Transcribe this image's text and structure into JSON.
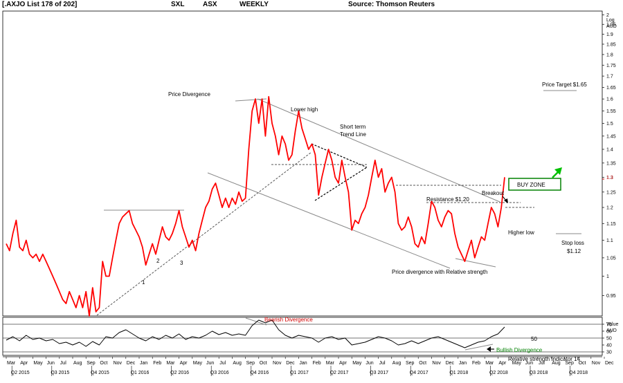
{
  "header": {
    "list": "[.AXJO List 178 of 202]",
    "code": "SXL",
    "exchange": "ASX",
    "period": "WEEKLY",
    "source": "Source: Thomson Reuters"
  },
  "chart_data": {
    "type": "line",
    "price_axis": {
      "unit_label": "Log",
      "currency_label": "AUD",
      "scale": "log",
      "ylim": [
        0.9,
        2.02
      ],
      "ticks": [
        0.95,
        1,
        1.05,
        1.1,
        1.15,
        1.2,
        1.25,
        1.3,
        1.35,
        1.4,
        1.45,
        1.5,
        1.55,
        1.6,
        1.65,
        1.7,
        1.75,
        1.8,
        1.85,
        1.9,
        1.95,
        2
      ],
      "tick_labels": [
        "0.95",
        "1",
        "1.05",
        "1.1",
        "1.15",
        "1.2",
        "1.25",
        "1.3",
        "1.35",
        "1.4",
        "1.45",
        "1.5",
        "1.55",
        "1.6",
        "1.65",
        "1.7",
        "1.75",
        "1.8",
        "1.85",
        "1.9",
        "1.95",
        "2"
      ],
      "last_value": "1.3",
      "last_value_tick": 1.3
    },
    "rsi_axis": {
      "value_label": "Value",
      "currency_label": "AUD",
      "ylim": [
        25,
        80
      ],
      "ticks": [
        30,
        40,
        50,
        60,
        70
      ],
      "tick_labels": [
        "30",
        "40",
        "50",
        "60",
        "70"
      ]
    },
    "x_axis": {
      "start_month_index": 3,
      "months": [
        "Mar",
        "Apr",
        "May",
        "Jun",
        "Jul",
        "Aug",
        "Sep",
        "Oct",
        "Nov",
        "Dec",
        "Jan",
        "Feb",
        "Mar",
        "Apr",
        "May",
        "Jun",
        "Jul",
        "Aug",
        "Sep",
        "Oct",
        "Nov",
        "Dec",
        "Jan",
        "Feb",
        "Mar",
        "Apr",
        "May",
        "Jun",
        "Jul",
        "Aug",
        "Sep",
        "Oct",
        "Nov",
        "Dec",
        "Jan",
        "Feb",
        "Mar",
        "Apr",
        "May",
        "Jun",
        "Jul",
        "Aug",
        "Sep",
        "Oct",
        "Nov",
        "Dec"
      ],
      "quarters": [
        {
          "label": "Q2 2015",
          "month": 4
        },
        {
          "label": "Q3 2015",
          "month": 7
        },
        {
          "label": "Q4 2015",
          "month": 10
        },
        {
          "label": "Q1 2016",
          "month": 13
        },
        {
          "label": "Q2 2016",
          "month": 16
        },
        {
          "label": "Q3 2016",
          "month": 19
        },
        {
          "label": "Q4 2016",
          "month": 22
        },
        {
          "label": "Q1 2017",
          "month": 25
        },
        {
          "label": "Q2 2017",
          "month": 28
        },
        {
          "label": "Q3 2017",
          "month": 31
        },
        {
          "label": "Q4 2017",
          "month": 34
        },
        {
          "label": "Q1 2018",
          "month": 37
        },
        {
          "label": "Q2 2018",
          "month": 40
        },
        {
          "label": "Q3 2018",
          "month": 43
        },
        {
          "label": "Q4 2018",
          "month": 46
        }
      ]
    },
    "price_series": {
      "color": "#ff0000",
      "points": [
        [
          3.0,
          1.09
        ],
        [
          3.25,
          1.07
        ],
        [
          3.5,
          1.12
        ],
        [
          3.75,
          1.16
        ],
        [
          4.0,
          1.08
        ],
        [
          4.25,
          1.07
        ],
        [
          4.5,
          1.1
        ],
        [
          4.75,
          1.06
        ],
        [
          5.0,
          1.05
        ],
        [
          5.25,
          1.06
        ],
        [
          5.5,
          1.04
        ],
        [
          5.75,
          1.06
        ],
        [
          6.0,
          1.04
        ],
        [
          6.25,
          1.02
        ],
        [
          6.5,
          1.0
        ],
        [
          6.75,
          0.98
        ],
        [
          7.0,
          0.96
        ],
        [
          7.25,
          0.94
        ],
        [
          7.5,
          0.93
        ],
        [
          7.75,
          0.96
        ],
        [
          8.0,
          0.94
        ],
        [
          8.25,
          0.92
        ],
        [
          8.5,
          0.95
        ],
        [
          8.75,
          0.92
        ],
        [
          9.0,
          0.96
        ],
        [
          9.25,
          0.9
        ],
        [
          9.5,
          0.97
        ],
        [
          9.75,
          0.91
        ],
        [
          10.0,
          0.92
        ],
        [
          10.25,
          1.04
        ],
        [
          10.5,
          1.0
        ],
        [
          10.75,
          1.0
        ],
        [
          11.0,
          1.05
        ],
        [
          11.25,
          1.1
        ],
        [
          11.5,
          1.15
        ],
        [
          11.75,
          1.17
        ],
        [
          12.0,
          1.18
        ],
        [
          12.25,
          1.19
        ],
        [
          12.5,
          1.15
        ],
        [
          12.75,
          1.13
        ],
        [
          13.0,
          1.11
        ],
        [
          13.25,
          1.08
        ],
        [
          13.5,
          1.03
        ],
        [
          13.75,
          1.06
        ],
        [
          14.0,
          1.09
        ],
        [
          14.25,
          1.06
        ],
        [
          14.5,
          1.1
        ],
        [
          14.75,
          1.14
        ],
        [
          15.0,
          1.11
        ],
        [
          15.25,
          1.1
        ],
        [
          15.5,
          1.12
        ],
        [
          15.75,
          1.15
        ],
        [
          16.0,
          1.19
        ],
        [
          16.25,
          1.14
        ],
        [
          16.5,
          1.11
        ],
        [
          16.75,
          1.08
        ],
        [
          17.0,
          1.1
        ],
        [
          17.25,
          1.07
        ],
        [
          17.5,
          1.12
        ],
        [
          17.75,
          1.16
        ],
        [
          18.0,
          1.2
        ],
        [
          18.25,
          1.22
        ],
        [
          18.5,
          1.26
        ],
        [
          18.75,
          1.28
        ],
        [
          19.0,
          1.24
        ],
        [
          19.25,
          1.2
        ],
        [
          19.5,
          1.23
        ],
        [
          19.75,
          1.2
        ],
        [
          20.0,
          1.23
        ],
        [
          20.25,
          1.21
        ],
        [
          20.5,
          1.25
        ],
        [
          20.75,
          1.22
        ],
        [
          21.0,
          1.23
        ],
        [
          21.25,
          1.4
        ],
        [
          21.5,
          1.55
        ],
        [
          21.75,
          1.6
        ],
        [
          22.0,
          1.5
        ],
        [
          22.25,
          1.6
        ],
        [
          22.5,
          1.45
        ],
        [
          22.75,
          1.61
        ],
        [
          23.0,
          1.5
        ],
        [
          23.25,
          1.45
        ],
        [
          23.5,
          1.38
        ],
        [
          23.75,
          1.45
        ],
        [
          24.0,
          1.42
        ],
        [
          24.25,
          1.36
        ],
        [
          24.5,
          1.38
        ],
        [
          24.75,
          1.47
        ],
        [
          25.0,
          1.55
        ],
        [
          25.25,
          1.48
        ],
        [
          25.5,
          1.44
        ],
        [
          25.75,
          1.4
        ],
        [
          26.0,
          1.42
        ],
        [
          26.25,
          1.38
        ],
        [
          26.5,
          1.24
        ],
        [
          26.75,
          1.3
        ],
        [
          27.0,
          1.35
        ],
        [
          27.25,
          1.4
        ],
        [
          27.5,
          1.36
        ],
        [
          27.75,
          1.3
        ],
        [
          28.0,
          1.28
        ],
        [
          28.25,
          1.36
        ],
        [
          28.5,
          1.3
        ],
        [
          28.75,
          1.25
        ],
        [
          29.0,
          1.13
        ],
        [
          29.25,
          1.16
        ],
        [
          29.5,
          1.15
        ],
        [
          29.75,
          1.18
        ],
        [
          30.0,
          1.2
        ],
        [
          30.25,
          1.24
        ],
        [
          30.5,
          1.3
        ],
        [
          30.75,
          1.36
        ],
        [
          31.0,
          1.3
        ],
        [
          31.25,
          1.33
        ],
        [
          31.5,
          1.25
        ],
        [
          31.75,
          1.28
        ],
        [
          32.0,
          1.3
        ],
        [
          32.25,
          1.25
        ],
        [
          32.5,
          1.15
        ],
        [
          32.75,
          1.13
        ],
        [
          33.0,
          1.14
        ],
        [
          33.25,
          1.17
        ],
        [
          33.5,
          1.14
        ],
        [
          33.75,
          1.09
        ],
        [
          34.0,
          1.08
        ],
        [
          34.25,
          1.11
        ],
        [
          34.5,
          1.09
        ],
        [
          34.75,
          1.15
        ],
        [
          35.0,
          1.22
        ],
        [
          35.25,
          1.2
        ],
        [
          35.5,
          1.16
        ],
        [
          35.75,
          1.14
        ],
        [
          36.0,
          1.17
        ],
        [
          36.25,
          1.19
        ],
        [
          36.5,
          1.18
        ],
        [
          36.75,
          1.12
        ],
        [
          37.0,
          1.08
        ],
        [
          37.25,
          1.06
        ],
        [
          37.5,
          1.04
        ],
        [
          37.75,
          1.07
        ],
        [
          38.0,
          1.1
        ],
        [
          38.25,
          1.05
        ],
        [
          38.5,
          1.08
        ],
        [
          38.75,
          1.11
        ],
        [
          39.0,
          1.1
        ],
        [
          39.25,
          1.15
        ],
        [
          39.5,
          1.2
        ],
        [
          39.75,
          1.18
        ],
        [
          40.0,
          1.14
        ],
        [
          40.25,
          1.2
        ],
        [
          40.5,
          1.3
        ]
      ]
    },
    "rsi_series": {
      "color": "#000000",
      "points": [
        [
          3.0,
          47
        ],
        [
          3.5,
          52
        ],
        [
          4.0,
          46
        ],
        [
          4.5,
          54
        ],
        [
          5.0,
          48
        ],
        [
          5.5,
          50
        ],
        [
          6.0,
          46
        ],
        [
          6.5,
          48
        ],
        [
          7.0,
          42
        ],
        [
          7.5,
          44
        ],
        [
          8.0,
          40
        ],
        [
          8.5,
          44
        ],
        [
          9.0,
          38
        ],
        [
          9.5,
          45
        ],
        [
          10.0,
          40
        ],
        [
          10.5,
          52
        ],
        [
          11.0,
          50
        ],
        [
          11.5,
          58
        ],
        [
          12.0,
          62
        ],
        [
          12.5,
          56
        ],
        [
          13.0,
          50
        ],
        [
          13.5,
          46
        ],
        [
          14.0,
          52
        ],
        [
          14.5,
          48
        ],
        [
          15.0,
          54
        ],
        [
          15.5,
          50
        ],
        [
          16.0,
          56
        ],
        [
          16.5,
          48
        ],
        [
          17.0,
          52
        ],
        [
          17.5,
          50
        ],
        [
          18.0,
          54
        ],
        [
          18.5,
          60
        ],
        [
          19.0,
          55
        ],
        [
          19.5,
          58
        ],
        [
          20.0,
          54
        ],
        [
          20.5,
          56
        ],
        [
          21.0,
          54
        ],
        [
          21.5,
          68
        ],
        [
          22.0,
          76
        ],
        [
          22.5,
          72
        ],
        [
          23.0,
          76
        ],
        [
          23.5,
          62
        ],
        [
          24.0,
          54
        ],
        [
          24.5,
          50
        ],
        [
          25.0,
          54
        ],
        [
          25.5,
          52
        ],
        [
          26.0,
          50
        ],
        [
          26.5,
          44
        ],
        [
          27.0,
          50
        ],
        [
          27.5,
          52
        ],
        [
          28.0,
          48
        ],
        [
          28.5,
          50
        ],
        [
          29.0,
          40
        ],
        [
          29.5,
          42
        ],
        [
          30.0,
          44
        ],
        [
          30.5,
          48
        ],
        [
          31.0,
          52
        ],
        [
          31.5,
          50
        ],
        [
          32.0,
          46
        ],
        [
          32.5,
          40
        ],
        [
          33.0,
          42
        ],
        [
          33.5,
          46
        ],
        [
          34.0,
          42
        ],
        [
          34.5,
          46
        ],
        [
          35.0,
          50
        ],
        [
          35.5,
          52
        ],
        [
          36.0,
          48
        ],
        [
          36.5,
          44
        ],
        [
          37.0,
          40
        ],
        [
          37.5,
          36
        ],
        [
          38.0,
          40
        ],
        [
          38.5,
          44
        ],
        [
          39.0,
          46
        ],
        [
          39.5,
          52
        ],
        [
          40.0,
          56
        ],
        [
          40.5,
          66
        ]
      ]
    },
    "annotations": {
      "price_divergence": "Price Divergence",
      "lower_high": "Lower high",
      "short_term": "Short term",
      "trend_line": "Trend Line",
      "buy_zone": "BUY ZONE",
      "breakout": "Breakout",
      "resistance": "Resistance $1.20",
      "higher_low": "Higher low",
      "price_target": "Price Target $1.65",
      "stop_loss_1": "Stop loss",
      "stop_loss_2": "$1.12",
      "rs_divergence": "Price divergence with Relative strength",
      "wave_1": "1",
      "wave_2": "2",
      "wave_3": "3",
      "bearish_divergence": "Bearish Divergence",
      "bullish_divergence": "Bullish Divergence",
      "rsi_50": "50",
      "rsi_title": "Relative strength Indicator 14"
    },
    "colors": {
      "price": "#ff0000",
      "rsi": "#000000",
      "trend_lines": "#888888",
      "buy_zone": "#008000",
      "bearish": "#d00000",
      "bullish": "#008000"
    }
  }
}
